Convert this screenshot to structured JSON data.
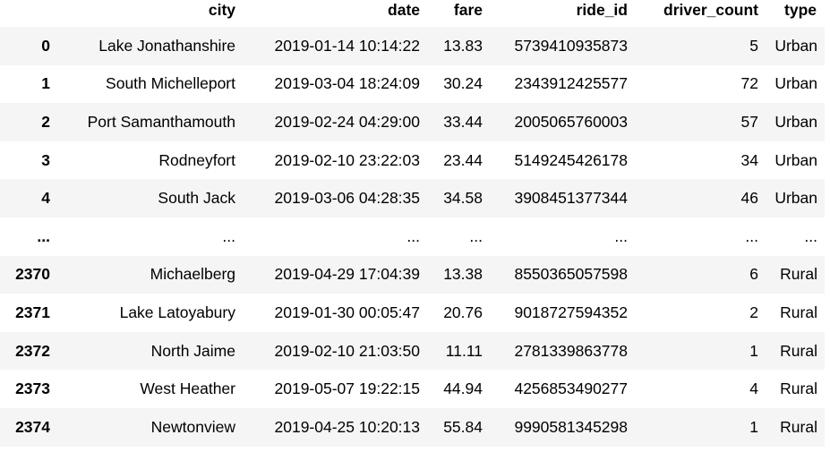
{
  "columns": [
    "",
    "city",
    "date",
    "fare",
    "ride_id",
    "driver_count",
    "type"
  ],
  "rows": [
    [
      "0",
      "Lake Jonathanshire",
      "2019-01-14 10:14:22",
      "13.83",
      "5739410935873",
      "5",
      "Urban"
    ],
    [
      "1",
      "South Michelleport",
      "2019-03-04 18:24:09",
      "30.24",
      "2343912425577",
      "72",
      "Urban"
    ],
    [
      "2",
      "Port Samanthamouth",
      "2019-02-24 04:29:00",
      "33.44",
      "2005065760003",
      "57",
      "Urban"
    ],
    [
      "3",
      "Rodneyfort",
      "2019-02-10 23:22:03",
      "23.44",
      "5149245426178",
      "34",
      "Urban"
    ],
    [
      "4",
      "South Jack",
      "2019-03-06 04:28:35",
      "34.58",
      "3908451377344",
      "46",
      "Urban"
    ],
    [
      "...",
      "...",
      "...",
      "...",
      "...",
      "...",
      "..."
    ],
    [
      "2370",
      "Michaelberg",
      "2019-04-29 17:04:39",
      "13.38",
      "8550365057598",
      "6",
      "Rural"
    ],
    [
      "2371",
      "Lake Latoyabury",
      "2019-01-30 00:05:47",
      "20.76",
      "9018727594352",
      "2",
      "Rural"
    ],
    [
      "2372",
      "North Jaime",
      "2019-02-10 21:03:50",
      "11.11",
      "2781339863778",
      "1",
      "Rural"
    ],
    [
      "2373",
      "West Heather",
      "2019-05-07 19:22:15",
      "44.94",
      "4256853490277",
      "4",
      "Rural"
    ],
    [
      "2374",
      "Newtonview",
      "2019-04-25 10:20:13",
      "55.84",
      "9990581345298",
      "1",
      "Rural"
    ]
  ]
}
